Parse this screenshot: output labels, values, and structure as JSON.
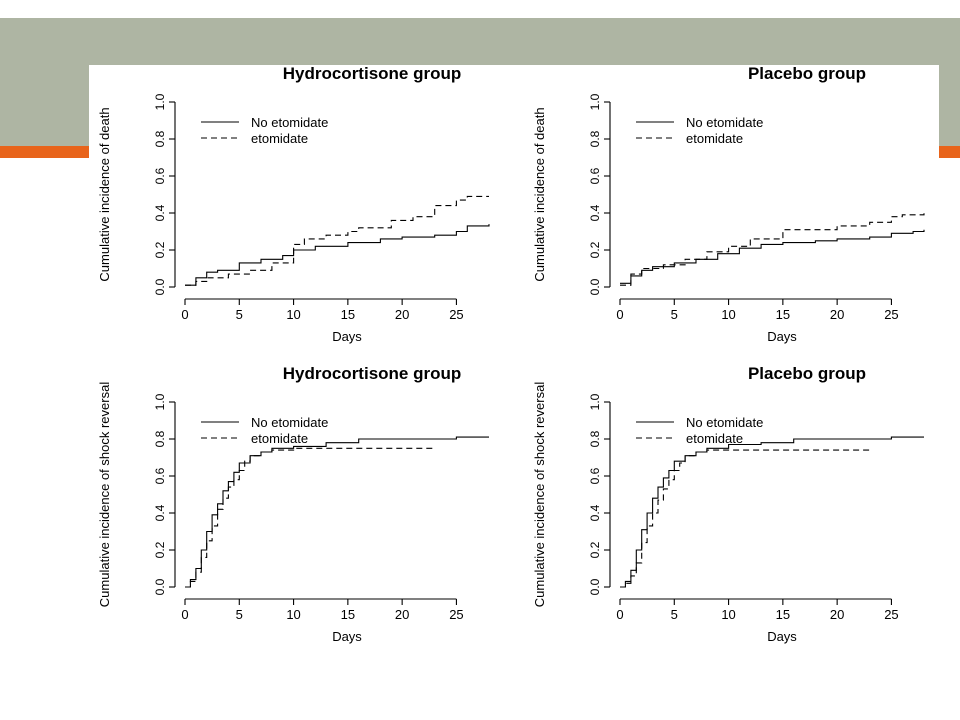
{
  "colors": {
    "banner": "#aeb5a3",
    "accent": "#e8641b",
    "line": "#000000"
  },
  "chart_data": [
    {
      "type": "line",
      "step": true,
      "title": "Hydrocortisone group",
      "xlabel": "Days",
      "ylabel": "Cumulative incidence of death",
      "xlim": [
        0,
        28
      ],
      "ylim": [
        0,
        1
      ],
      "xticks": [
        "0",
        "5",
        "10",
        "15",
        "20",
        "25"
      ],
      "yticks": [
        "0.0",
        "0.2",
        "0.4",
        "0.6",
        "0.8",
        "1.0"
      ],
      "legend": [
        "No etomidate",
        "etomidate"
      ],
      "legend_position": "top-left",
      "series": [
        {
          "name": "No etomidate",
          "dash": "solid",
          "x": [
            0,
            1,
            2,
            3,
            5,
            7,
            9,
            10,
            12,
            15,
            18,
            20,
            23,
            25,
            26,
            28
          ],
          "y": [
            0.01,
            0.05,
            0.08,
            0.09,
            0.13,
            0.15,
            0.17,
            0.2,
            0.22,
            0.24,
            0.26,
            0.27,
            0.28,
            0.3,
            0.33,
            0.34
          ]
        },
        {
          "name": "etomidate",
          "dash": "dashed",
          "x": [
            0,
            1,
            2,
            4,
            6,
            8,
            10,
            11,
            13,
            15,
            16,
            19,
            21,
            23,
            25,
            26,
            28
          ],
          "y": [
            0.01,
            0.03,
            0.05,
            0.07,
            0.09,
            0.13,
            0.23,
            0.26,
            0.28,
            0.3,
            0.32,
            0.36,
            0.38,
            0.44,
            0.47,
            0.49,
            0.49
          ]
        }
      ]
    },
    {
      "type": "line",
      "step": true,
      "title": "Placebo group",
      "xlabel": "Days",
      "ylabel": "Cumulative incidence of death",
      "xlim": [
        0,
        28
      ],
      "ylim": [
        0,
        1
      ],
      "xticks": [
        "0",
        "5",
        "10",
        "15",
        "20",
        "25"
      ],
      "yticks": [
        "0.0",
        "0.2",
        "0.4",
        "0.6",
        "0.8",
        "1.0"
      ],
      "legend": [
        "No etomidate",
        "etomidate"
      ],
      "legend_position": "top-left",
      "series": [
        {
          "name": "No etomidate",
          "dash": "solid",
          "x": [
            0,
            1,
            2,
            3,
            5,
            7,
            9,
            11,
            13,
            15,
            18,
            20,
            23,
            25,
            27,
            28
          ],
          "y": [
            0.02,
            0.06,
            0.09,
            0.11,
            0.13,
            0.15,
            0.18,
            0.21,
            0.23,
            0.24,
            0.25,
            0.26,
            0.27,
            0.29,
            0.3,
            0.31
          ]
        },
        {
          "name": "etomidate",
          "dash": "dashed",
          "x": [
            0,
            1,
            2,
            4,
            6,
            8,
            10,
            12,
            15,
            18,
            20,
            23,
            25,
            26,
            28
          ],
          "y": [
            0.01,
            0.07,
            0.1,
            0.12,
            0.15,
            0.19,
            0.22,
            0.26,
            0.31,
            0.31,
            0.33,
            0.35,
            0.38,
            0.39,
            0.4
          ]
        }
      ]
    },
    {
      "type": "line",
      "step": true,
      "title": "Hydrocortisone group",
      "xlabel": "Days",
      "ylabel": "Cumulative incidence of shock reversal",
      "xlim": [
        0,
        28
      ],
      "ylim": [
        0,
        1
      ],
      "xticks": [
        "0",
        "5",
        "10",
        "15",
        "20",
        "25"
      ],
      "yticks": [
        "0.0",
        "0.2",
        "0.4",
        "0.6",
        "0.8",
        "1.0"
      ],
      "legend": [
        "No etomidate",
        "etomidate"
      ],
      "legend_position": "top-left",
      "series": [
        {
          "name": "No etomidate",
          "dash": "solid",
          "x": [
            0,
            0.5,
            1,
            1.5,
            2,
            2.5,
            3,
            3.5,
            4,
            4.5,
            5,
            6,
            7,
            8,
            10,
            13,
            16,
            25,
            28
          ],
          "y": [
            0.0,
            0.04,
            0.1,
            0.2,
            0.3,
            0.39,
            0.45,
            0.52,
            0.57,
            0.62,
            0.67,
            0.71,
            0.73,
            0.75,
            0.76,
            0.78,
            0.8,
            0.81,
            0.81
          ]
        },
        {
          "name": "etomidate",
          "dash": "dashed",
          "x": [
            0,
            0.5,
            1,
            1.5,
            2,
            2.5,
            3,
            3.5,
            4,
            4.5,
            5,
            5.5,
            6,
            7,
            8,
            10,
            23
          ],
          "y": [
            0.0,
            0.03,
            0.08,
            0.16,
            0.25,
            0.33,
            0.42,
            0.48,
            0.54,
            0.58,
            0.63,
            0.68,
            0.71,
            0.73,
            0.74,
            0.75,
            0.75
          ]
        }
      ]
    },
    {
      "type": "line",
      "step": true,
      "title": "Placebo group",
      "xlabel": "Days",
      "ylabel": "Cumulative incidence of shock reversal",
      "xlim": [
        0,
        28
      ],
      "ylim": [
        0,
        1
      ],
      "xticks": [
        "0",
        "5",
        "10",
        "15",
        "20",
        "25"
      ],
      "yticks": [
        "0.0",
        "0.2",
        "0.4",
        "0.6",
        "0.8",
        "1.0"
      ],
      "legend": [
        "No etomidate",
        "etomidate"
      ],
      "legend_position": "top-left",
      "series": [
        {
          "name": "No etomidate",
          "dash": "solid",
          "x": [
            0,
            0.5,
            1,
            1.5,
            2,
            2.5,
            3,
            3.5,
            4,
            4.5,
            5,
            6,
            7,
            8,
            10,
            13,
            16,
            25,
            28
          ],
          "y": [
            0.0,
            0.03,
            0.09,
            0.2,
            0.31,
            0.4,
            0.48,
            0.54,
            0.59,
            0.63,
            0.68,
            0.71,
            0.73,
            0.75,
            0.77,
            0.78,
            0.8,
            0.81,
            0.81
          ]
        },
        {
          "name": "etomidate",
          "dash": "dashed",
          "x": [
            0,
            0.5,
            1,
            1.5,
            2,
            2.5,
            3,
            3.5,
            4,
            4.5,
            5,
            5.5,
            6,
            7,
            8,
            23
          ],
          "y": [
            0.0,
            0.02,
            0.06,
            0.13,
            0.24,
            0.33,
            0.4,
            0.47,
            0.53,
            0.58,
            0.63,
            0.67,
            0.71,
            0.73,
            0.74,
            0.74
          ]
        }
      ]
    }
  ]
}
